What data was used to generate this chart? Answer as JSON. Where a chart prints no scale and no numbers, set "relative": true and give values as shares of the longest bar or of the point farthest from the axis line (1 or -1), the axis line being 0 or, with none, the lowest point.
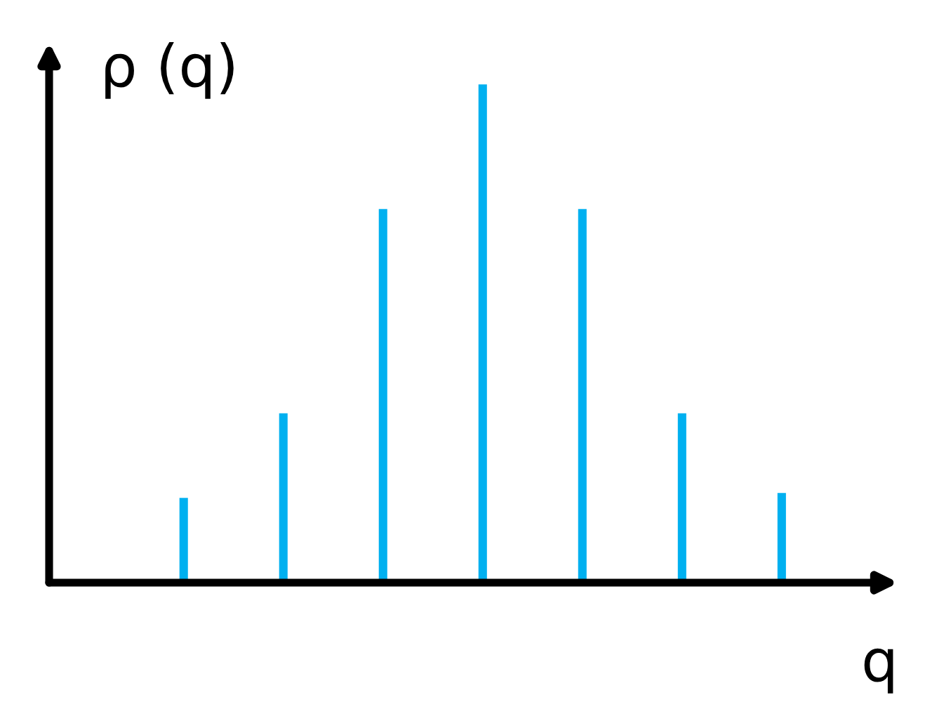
{
  "chart_data": {
    "type": "bar",
    "relative": true,
    "xlabel": "q",
    "ylabel": "ρ (q)",
    "categories": [
      null,
      null,
      null,
      null,
      null,
      null,
      null
    ],
    "values": [
      0.17,
      0.34,
      0.75,
      1,
      0.75,
      0.34,
      0.18
    ],
    "color": "#00b0f0",
    "grid": false,
    "legend": false
  }
}
